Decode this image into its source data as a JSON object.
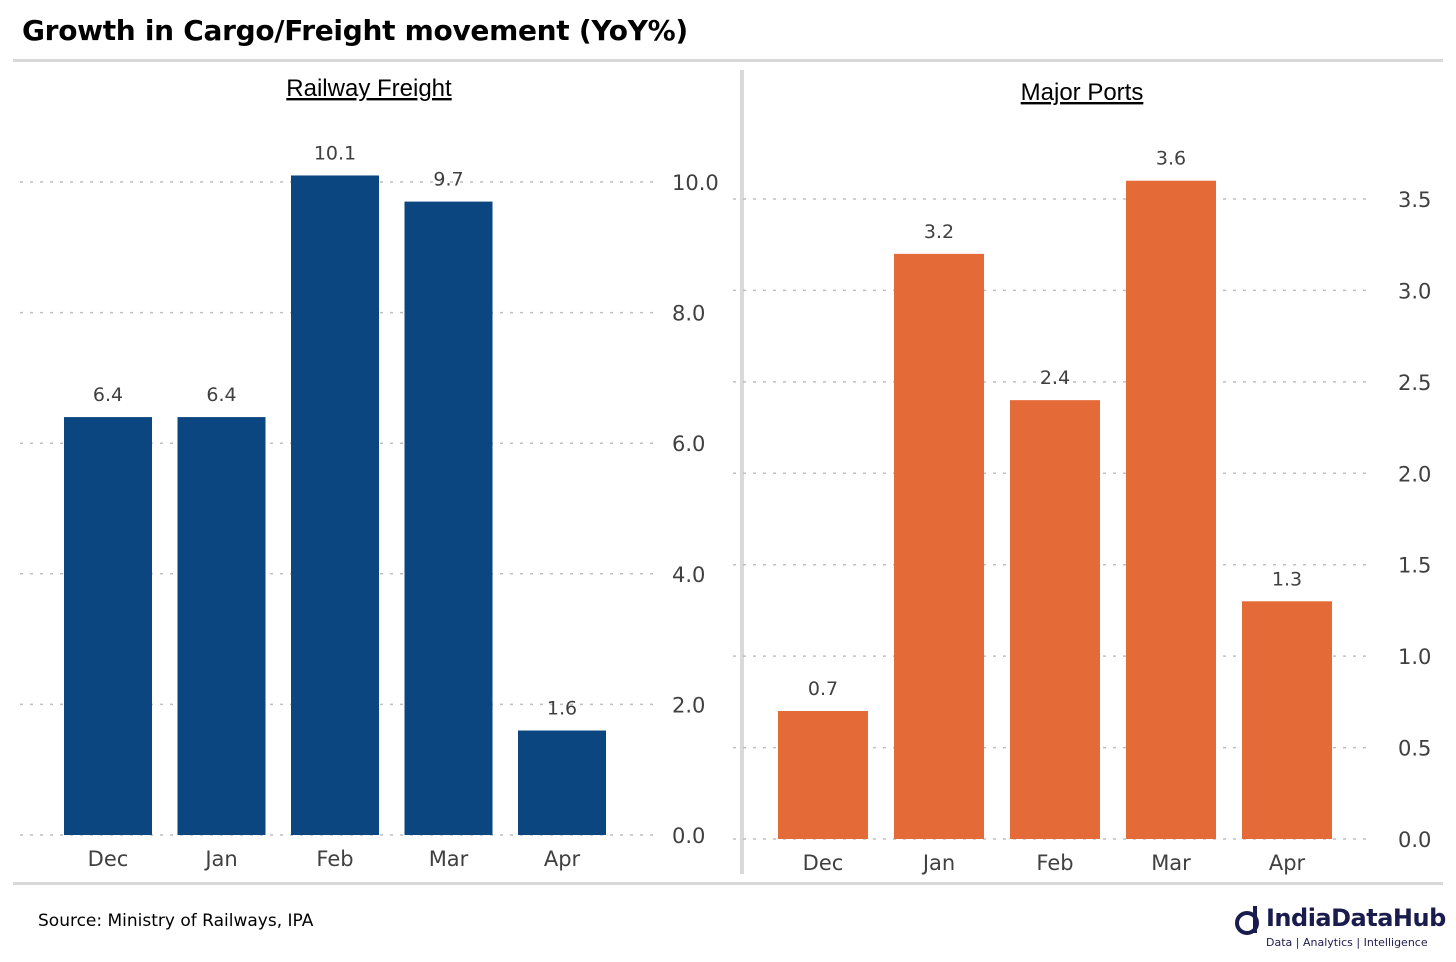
{
  "title": "Growth in Cargo/Freight movement (YoY%)",
  "source": "Source: Ministry of Railways, IPA",
  "logo": {
    "name": "IndiaDataHub",
    "tagline": "Data | Analytics | Intelligence"
  },
  "colors": {
    "railway": "#0b4680",
    "ports": "#e46b38",
    "grid": "#bfbfbf",
    "axis_text": "#404040"
  },
  "chart_data": [
    {
      "type": "bar",
      "title": "Railway Freight",
      "categories": [
        "Dec",
        "Jan",
        "Feb",
        "Mar",
        "Apr"
      ],
      "values": [
        6.4,
        6.4,
        10.1,
        9.7,
        1.6
      ],
      "ylim": [
        0,
        11
      ],
      "yticks": [
        0.0,
        2.0,
        4.0,
        6.0,
        8.0,
        10.0
      ],
      "y_axis_side": "right",
      "grid": true,
      "legend": "none"
    },
    {
      "type": "bar",
      "title": "Major Ports",
      "categories": [
        "Dec",
        "Jan",
        "Feb",
        "Mar",
        "Apr"
      ],
      "values": [
        0.7,
        3.2,
        2.4,
        3.6,
        1.3
      ],
      "ylim": [
        0,
        3.9
      ],
      "yticks": [
        0.0,
        0.5,
        1.0,
        1.5,
        2.0,
        2.5,
        3.0,
        3.5
      ],
      "y_axis_side": "right",
      "grid": true,
      "legend": "none"
    }
  ]
}
